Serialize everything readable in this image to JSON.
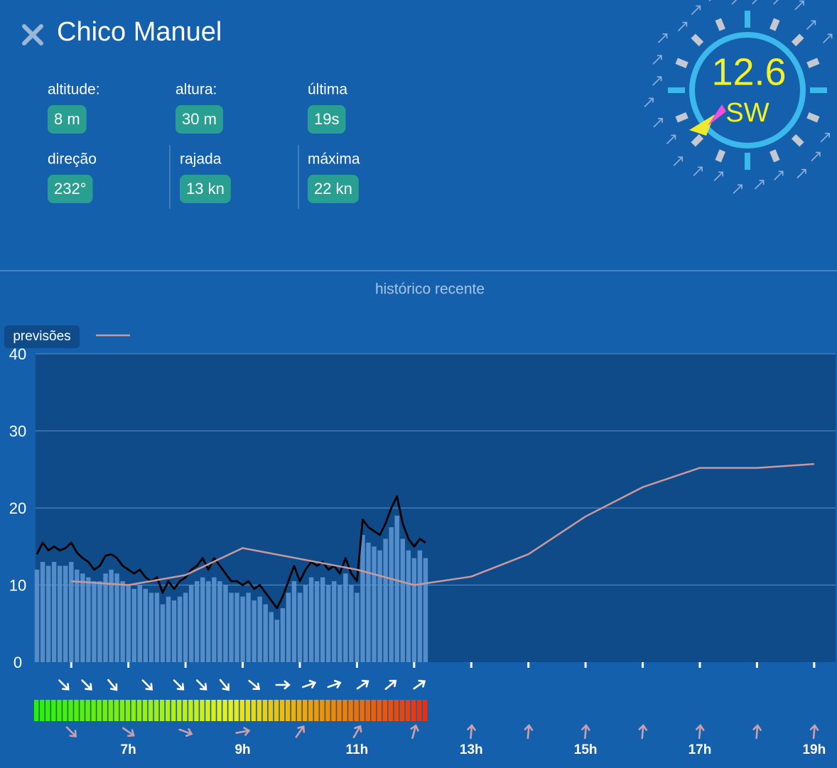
{
  "header": {
    "title": "Chico Manuel"
  },
  "stats": [
    {
      "label": "altitude:",
      "value": "8 m"
    },
    {
      "label": "altura:",
      "value": "30 m"
    },
    {
      "label": "última",
      "value": "19s"
    },
    {
      "label": "direção",
      "value": "232°"
    },
    {
      "label": "rajada",
      "value": "13 kn"
    },
    {
      "label": "máxima",
      "value": "22 kn"
    }
  ],
  "gauge": {
    "speed": "12.6",
    "direction": "SW"
  },
  "chart_data": {
    "type": "combo",
    "title": "histórico recente",
    "xlim": [
      5.375,
      19.375
    ],
    "ylim": [
      0,
      40
    ],
    "yticks": [
      0,
      10,
      20,
      30,
      40
    ],
    "xticks": [
      {
        "value": 7,
        "label": "7h"
      },
      {
        "value": 9,
        "label": "9h"
      },
      {
        "value": 11,
        "label": "11h"
      },
      {
        "value": 13,
        "label": "13h"
      },
      {
        "value": 15,
        "label": "15h"
      },
      {
        "value": 17,
        "label": "17h"
      },
      {
        "value": 19,
        "label": "19h"
      }
    ],
    "xminorticks": [
      6,
      8,
      10,
      12,
      14,
      16,
      18
    ],
    "grid": true,
    "x": [
      5.4,
      5.5,
      5.6,
      5.7,
      5.8,
      5.9,
      6.0,
      6.1,
      6.2,
      6.3,
      6.4,
      6.5,
      6.6,
      6.7,
      6.8,
      6.9,
      7.0,
      7.1,
      7.2,
      7.3,
      7.4,
      7.5,
      7.6,
      7.7,
      7.8,
      7.9,
      8.0,
      8.1,
      8.2,
      8.3,
      8.4,
      8.5,
      8.6,
      8.7,
      8.8,
      8.9,
      9.0,
      9.1,
      9.2,
      9.3,
      9.4,
      9.5,
      9.6,
      9.7,
      9.8,
      9.9,
      10.0,
      10.1,
      10.2,
      10.3,
      10.4,
      10.5,
      10.6,
      10.7,
      10.8,
      10.9,
      11.0,
      11.1,
      11.2,
      11.3,
      11.4,
      11.5,
      11.6,
      11.7,
      11.8,
      11.9,
      12.0,
      12.1,
      12.2
    ],
    "series": [
      {
        "type": "bar",
        "color": "#5b93cf",
        "values": [
          12,
          13,
          12.5,
          13,
          12.5,
          12.5,
          13,
          12,
          11.5,
          11,
          10.5,
          10.5,
          11.5,
          12,
          11.5,
          10.5,
          10,
          9.5,
          10,
          9.5,
          9,
          9,
          7.5,
          8.5,
          8,
          8.5,
          9,
          10,
          10.5,
          11,
          10.5,
          11,
          10.5,
          10,
          9,
          9,
          8.5,
          9,
          8,
          8.5,
          7.5,
          6.5,
          5.5,
          7,
          9,
          10.5,
          9,
          10,
          11,
          10.5,
          11,
          10,
          10.5,
          10,
          11.5,
          10,
          9,
          16.5,
          15.5,
          15,
          14.5,
          16,
          17.5,
          19,
          16,
          14.5,
          13.5,
          14.5,
          13.5
        ]
      },
      {
        "type": "line",
        "color": "#000000",
        "values": [
          14,
          15.5,
          14.5,
          15,
          14.5,
          14.8,
          15.5,
          14.2,
          13.5,
          13,
          12,
          12.5,
          13.8,
          14,
          13.5,
          12.5,
          12,
          11.5,
          12,
          11,
          10.5,
          11,
          9,
          10.5,
          9.5,
          10.5,
          11,
          12,
          12.5,
          13.5,
          12,
          13.5,
          12.5,
          11.5,
          10.5,
          10.5,
          10,
          10.5,
          9.5,
          10,
          9,
          8,
          7,
          8.5,
          10.5,
          12.5,
          10.5,
          12,
          13,
          12.5,
          13,
          12,
          12.5,
          11.5,
          13.5,
          11.5,
          10.5,
          18.5,
          17.5,
          17,
          16.5,
          18,
          20,
          21.5,
          18,
          16,
          15,
          16,
          15.5
        ]
      },
      {
        "type": "line",
        "name": "previsões",
        "color": "#c9999b",
        "x": [
          6,
          7,
          8,
          9,
          11,
          12,
          13,
          14,
          15,
          16,
          17,
          18,
          19
        ],
        "values": [
          10.5,
          10,
          11.3,
          14.8,
          12,
          10,
          11.1,
          14,
          18.9,
          22.7,
          25.2,
          25.2,
          25.7
        ]
      }
    ],
    "legend": "top-left",
    "direction_arrows": [
      {
        "color": "#ffffff",
        "x": [
          5.87,
          6.27,
          6.72,
          7.33,
          7.88,
          8.28,
          8.68,
          9.2,
          9.7,
          10.16,
          10.6,
          11.1,
          11.59,
          12.09
        ],
        "values": [
          135,
          135,
          140,
          135,
          135,
          135,
          140,
          130,
          90,
          70,
          70,
          55,
          50,
          55
        ]
      },
      {
        "color": "#c9a0ae",
        "x": [
          6,
          7,
          8,
          9,
          10,
          11,
          12,
          13,
          14,
          15,
          16,
          17,
          18,
          19
        ],
        "values": [
          135,
          125,
          110,
          80,
          35,
          30,
          15,
          5,
          5,
          5,
          5,
          5,
          5,
          5
        ]
      }
    ]
  }
}
